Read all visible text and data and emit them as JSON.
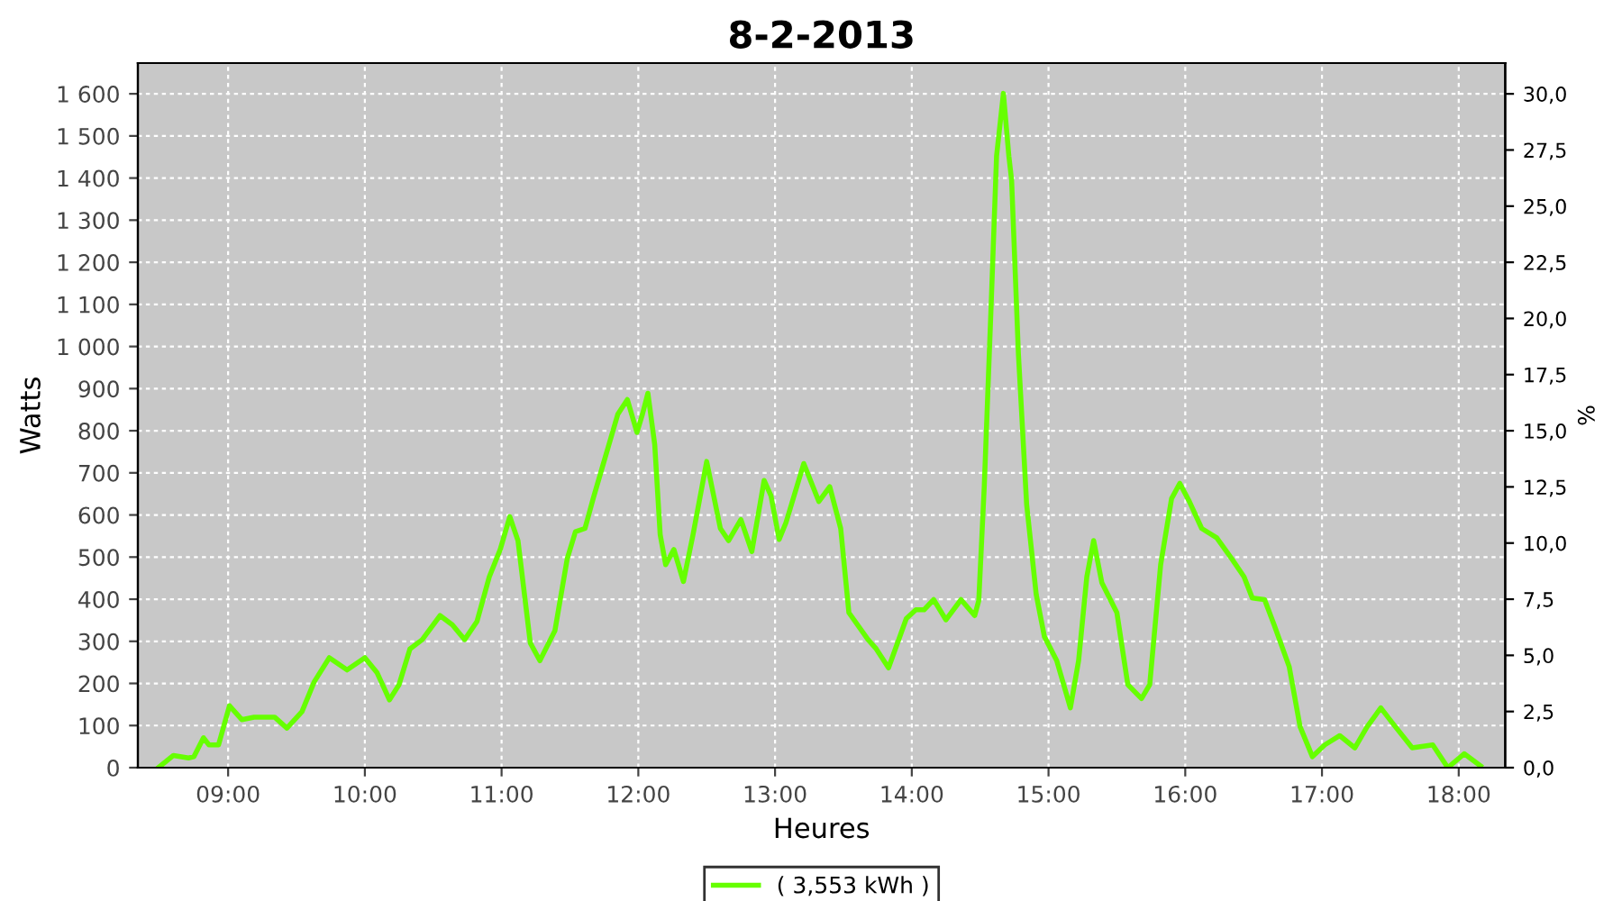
{
  "chart_data": {
    "type": "line",
    "title": "8-2-2013",
    "xlabel": "Heures",
    "ylabel": "Watts",
    "y2label": "%",
    "xlim": [
      8.34,
      18.34
    ],
    "xticks": [
      {
        "value": 9,
        "label": "09:00"
      },
      {
        "value": 10,
        "label": "10:00"
      },
      {
        "value": 11,
        "label": "11:00"
      },
      {
        "value": 12,
        "label": "12:00"
      },
      {
        "value": 13,
        "label": "13:00"
      },
      {
        "value": 14,
        "label": "14:00"
      },
      {
        "value": 15,
        "label": "15:00"
      },
      {
        "value": 16,
        "label": "16:00"
      },
      {
        "value": 17,
        "label": "17:00"
      },
      {
        "value": 18,
        "label": "18:00"
      }
    ],
    "ylim": [
      0,
      1673
    ],
    "yticks": [
      0,
      100,
      200,
      300,
      400,
      500,
      600,
      700,
      800,
      900,
      {
        "value": 1000,
        "label": "1 000"
      },
      {
        "value": 1100,
        "label": "1 100"
      },
      {
        "value": 1200,
        "label": "1 200"
      },
      {
        "value": 1300,
        "label": "1 300"
      },
      {
        "value": 1400,
        "label": "1 400"
      },
      {
        "value": 1500,
        "label": "1 500"
      },
      {
        "value": 1600,
        "label": "1 600"
      }
    ],
    "y2lim": [
      0,
      31.37
    ],
    "y2ticks": [
      {
        "value": 0,
        "label": "0,0"
      },
      {
        "value": 2.5,
        "label": "2,5"
      },
      {
        "value": 5,
        "label": "5,0"
      },
      {
        "value": 7.5,
        "label": "7,5"
      },
      {
        "value": 10,
        "label": "10,0"
      },
      {
        "value": 12.5,
        "label": "12,5"
      },
      {
        "value": 15,
        "label": "15,0"
      },
      {
        "value": 17.5,
        "label": "17,5"
      },
      {
        "value": 20,
        "label": "20,0"
      },
      {
        "value": 22.5,
        "label": "22,5"
      },
      {
        "value": 25,
        "label": "25,0"
      },
      {
        "value": 27.5,
        "label": "27,5"
      },
      {
        "value": 30,
        "label": "30,0"
      }
    ],
    "grid": true,
    "legend": "bottom",
    "marker": "none",
    "line_style": "solid",
    "series": [
      {
        "name": "( 3,553 kWh )",
        "color": "#66ff00",
        "x": [
          8.49,
          8.6,
          8.71,
          8.75,
          8.82,
          8.86,
          8.93,
          9.01,
          9.1,
          9.19,
          9.34,
          9.43,
          9.54,
          9.63,
          9.74,
          9.87,
          10.0,
          10.09,
          10.18,
          10.25,
          10.33,
          10.42,
          10.55,
          10.64,
          10.73,
          10.82,
          10.91,
          10.99,
          11.06,
          11.12,
          11.21,
          11.28,
          11.39,
          11.48,
          11.54,
          11.61,
          11.67,
          11.74,
          11.85,
          11.92,
          11.99,
          12.03,
          12.07,
          12.12,
          12.16,
          12.2,
          12.26,
          12.33,
          12.4,
          12.5,
          12.6,
          12.66,
          12.75,
          12.83,
          12.92,
          12.97,
          13.03,
          13.08,
          13.21,
          13.32,
          13.4,
          13.48,
          13.54,
          13.68,
          13.74,
          13.83,
          13.96,
          14.03,
          14.09,
          14.16,
          14.25,
          14.36,
          14.46,
          14.49,
          14.53,
          14.58,
          14.62,
          14.67,
          14.71,
          14.73,
          14.78,
          14.84,
          14.91,
          14.97,
          15.06,
          15.16,
          15.22,
          15.28,
          15.33,
          15.39,
          15.5,
          15.58,
          15.68,
          15.74,
          15.82,
          15.9,
          15.96,
          16.03,
          16.12,
          16.23,
          16.34,
          16.43,
          16.49,
          16.58,
          16.65,
          16.76,
          16.84,
          16.93,
          17.02,
          17.13,
          17.24,
          17.33,
          17.43,
          17.52,
          17.66,
          17.81,
          17.92,
          18.04,
          18.16
        ],
        "values": [
          0,
          29,
          23,
          26,
          71,
          54,
          54,
          147,
          114,
          120,
          120,
          94,
          133,
          204,
          261,
          232,
          261,
          225,
          161,
          197,
          282,
          304,
          361,
          339,
          304,
          347,
          453,
          518,
          596,
          539,
          296,
          254,
          325,
          496,
          560,
          568,
          639,
          717,
          839,
          874,
          796,
          839,
          889,
          767,
          553,
          482,
          518,
          442,
          553,
          727,
          568,
          539,
          589,
          513,
          682,
          646,
          542,
          582,
          722,
          632,
          667,
          568,
          368,
          304,
          282,
          237,
          354,
          375,
          375,
          399,
          351,
          399,
          361,
          397,
          667,
          1095,
          1452,
          1601,
          1452,
          1395,
          981,
          625,
          411,
          311,
          254,
          142,
          254,
          453,
          539,
          439,
          368,
          197,
          164,
          197,
          482,
          639,
          675,
          632,
          568,
          546,
          496,
          453,
          403,
          399,
          339,
          240,
          97,
          26,
          54,
          76,
          47,
          97,
          142,
          104,
          47,
          54,
          0,
          33,
          4
        ]
      }
    ]
  }
}
